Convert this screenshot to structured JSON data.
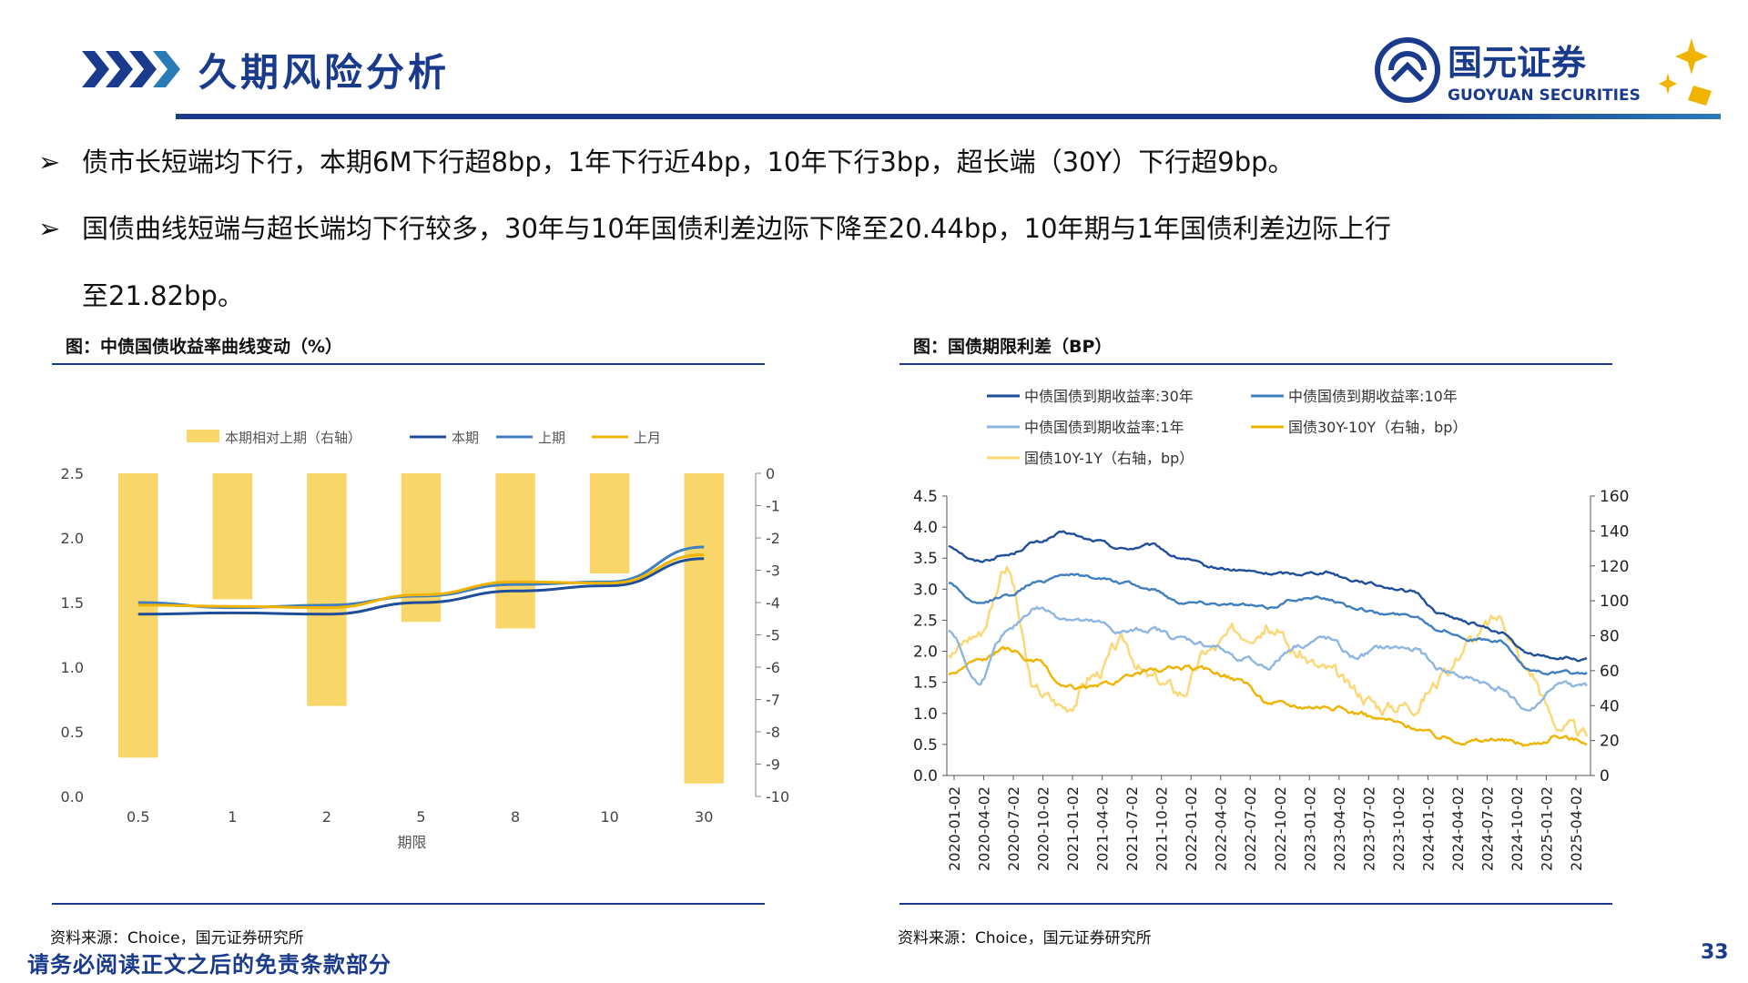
{
  "header": {
    "title": "久期风险分析",
    "logo_cn": "国元证券",
    "logo_en": "GUOYUAN SECURITIES"
  },
  "bullets": [
    {
      "text": "债市长短端均下行，本期6M下行超8bp，1年下行近4bp，10年下行3bp，超长端（30Y）下行超9bp。"
    },
    {
      "text": "国债曲线短端与超长端均下行较多，30年与10年国债利差边际下降至20.44bp，10年期与1年国债利差边际上行",
      "cont": "至21.82bp。"
    }
  ],
  "footer": {
    "left_source": "资料来源：Choice，国元证券研究所",
    "right_source": "资料来源：Choice，国元证券研究所",
    "disclaimer": "请务必阅读正文之后的免责条款部分",
    "page": "33"
  },
  "colors": {
    "brand_navy": "#1a3a8c",
    "navy": "#1f4e9a",
    "mid_blue": "#3f7fc0",
    "light_blue": "#8db6e0",
    "gold": "#f0b400",
    "light_gold": "#fbd775",
    "bar_gold": "#f9d66a"
  },
  "chart_data": [
    {
      "type": "bar+line",
      "title": "图：中债国债收益率曲线变动（%）",
      "xlabel": "期限",
      "categories": [
        "0.5",
        "1",
        "2",
        "5",
        "8",
        "10",
        "30"
      ],
      "ylim_left": [
        0,
        2.5
      ],
      "yticks_left": [
        "0.0",
        "0.5",
        "1.0",
        "1.5",
        "2.0",
        "2.5"
      ],
      "ylim_right": [
        -10,
        0
      ],
      "yticks_right": [
        "0",
        "-1",
        "-2",
        "-3",
        "-4",
        "-5",
        "-6",
        "-7",
        "-8",
        "-9",
        "-10"
      ],
      "legend": [
        "本期相对上期（右轴）",
        "本期",
        "上期",
        "上月"
      ],
      "series": [
        {
          "name": "本期相对上期（右轴）",
          "kind": "bar",
          "axis": "right",
          "values": [
            -8.8,
            -3.9,
            -7.2,
            -4.6,
            -4.8,
            -3.1,
            -9.6
          ]
        },
        {
          "name": "本期",
          "kind": "line",
          "values": [
            1.41,
            1.42,
            1.41,
            1.5,
            1.59,
            1.63,
            1.84
          ]
        },
        {
          "name": "上期",
          "kind": "line",
          "values": [
            1.5,
            1.46,
            1.48,
            1.55,
            1.64,
            1.66,
            1.93
          ]
        },
        {
          "name": "上月",
          "kind": "line",
          "values": [
            1.48,
            1.47,
            1.46,
            1.56,
            1.66,
            1.65,
            1.87
          ]
        }
      ]
    },
    {
      "type": "line",
      "title": "图：国债期限利差（BP）",
      "x_ticks": [
        "2020-01-02",
        "2020-04-02",
        "2020-07-02",
        "2020-10-02",
        "2021-01-02",
        "2021-04-02",
        "2021-07-02",
        "2021-10-02",
        "2022-01-02",
        "2022-04-02",
        "2022-07-02",
        "2022-10-02",
        "2023-01-02",
        "2023-04-02",
        "2023-07-02",
        "2023-10-02",
        "2024-01-02",
        "2024-04-02",
        "2024-07-02",
        "2024-10-02",
        "2025-01-02",
        "2025-04-02"
      ],
      "ylim_left": [
        0,
        4.5
      ],
      "yticks_left": [
        "0.0",
        "0.5",
        "1.0",
        "1.5",
        "2.0",
        "2.5",
        "3.0",
        "3.5",
        "4.0",
        "4.5"
      ],
      "ylim_right": [
        0,
        160
      ],
      "yticks_right": [
        "0",
        "20",
        "40",
        "60",
        "80",
        "100",
        "120",
        "140",
        "160"
      ],
      "legend": [
        "中债国债到期收益率:30年",
        "中债国债到期收益率:10年",
        "中债国债到期收益率:1年",
        "国债30Y-10Y（右轴，bp）",
        "国债10Y-1Y（右轴，bp）"
      ],
      "series": [
        {
          "name": "中债国债到期收益率:30年",
          "axis": "left",
          "values": [
            3.7,
            3.45,
            3.55,
            3.75,
            3.9,
            3.78,
            3.65,
            3.7,
            3.5,
            3.35,
            3.3,
            3.25,
            3.25,
            3.28,
            3.15,
            3.05,
            2.95,
            2.6,
            2.45,
            2.3,
            1.95,
            1.9,
            1.85
          ]
        },
        {
          "name": "中债国债到期收益率:10年",
          "axis": "left",
          "values": [
            3.1,
            2.75,
            2.9,
            3.1,
            3.25,
            3.2,
            3.1,
            3.0,
            2.8,
            2.78,
            2.75,
            2.7,
            2.85,
            2.85,
            2.7,
            2.6,
            2.58,
            2.35,
            2.2,
            2.15,
            1.7,
            1.65,
            1.65
          ]
        },
        {
          "name": "中债国债到期收益率:1年",
          "axis": "left",
          "values": [
            2.35,
            1.5,
            2.3,
            2.7,
            2.55,
            2.45,
            2.3,
            2.35,
            2.2,
            2.1,
            1.9,
            1.75,
            2.1,
            2.2,
            1.9,
            2.05,
            2.05,
            1.7,
            1.55,
            1.4,
            1.05,
            1.45,
            1.45
          ]
        },
        {
          "name": "国债30Y-10Y（右轴，bp）",
          "axis": "right",
          "values": [
            58,
            66,
            72,
            65,
            50,
            50,
            55,
            60,
            62,
            60,
            55,
            42,
            40,
            40,
            36,
            32,
            28,
            22,
            20,
            20,
            18,
            22,
            20
          ]
        },
        {
          "name": "国债10Y-1Y（右轴，bp）",
          "axis": "right",
          "values": [
            70,
            82,
            118,
            48,
            40,
            58,
            75,
            55,
            48,
            72,
            82,
            88,
            70,
            60,
            48,
            40,
            42,
            55,
            78,
            90,
            60,
            30,
            22
          ]
        }
      ]
    }
  ]
}
